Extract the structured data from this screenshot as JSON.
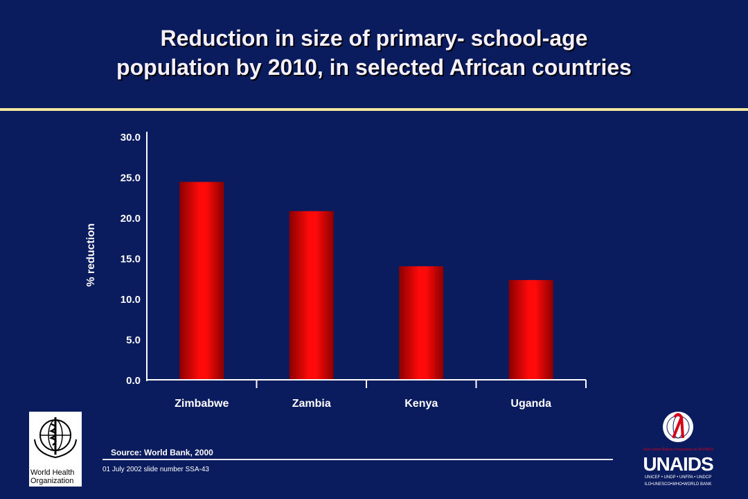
{
  "slide": {
    "title_line1": "Reduction in size of primary- school-age",
    "title_line2": "population by 2010, in selected African countries",
    "source": "Source:  World Bank, 2000",
    "note": "01 July 2002 slide number SSA-43"
  },
  "logos": {
    "who_line1": "World Health",
    "who_line2": "Organization",
    "unaids_name": "UNAIDS",
    "unaids_tagline": "Joint United Nations Programme on HIV/AIDS",
    "unaids_members_1": "UNICEF • UNDP • UNFPA • UNDCP",
    "unaids_members_2": "ILO•UNESCO•WHO•WORLD BANK"
  },
  "colors": {
    "background": "#0b1c5e",
    "bar": "#ff0000",
    "accent_rule": "#f3e6a0"
  },
  "chart_data": {
    "type": "bar",
    "title": "Reduction in size of primary- school-age population by 2010, in selected African countries",
    "xlabel": "",
    "ylabel": "% reduction",
    "categories": [
      "Zimbabwe",
      "Zambia",
      "Kenya",
      "Uganda"
    ],
    "values": [
      24.4,
      20.8,
      14.0,
      12.3
    ],
    "ylim": [
      0,
      30
    ],
    "yticks": [
      "0.0",
      "5.0",
      "10.0",
      "15.0",
      "20.0",
      "25.0",
      "30.0"
    ],
    "grid": false,
    "legend": "none"
  }
}
